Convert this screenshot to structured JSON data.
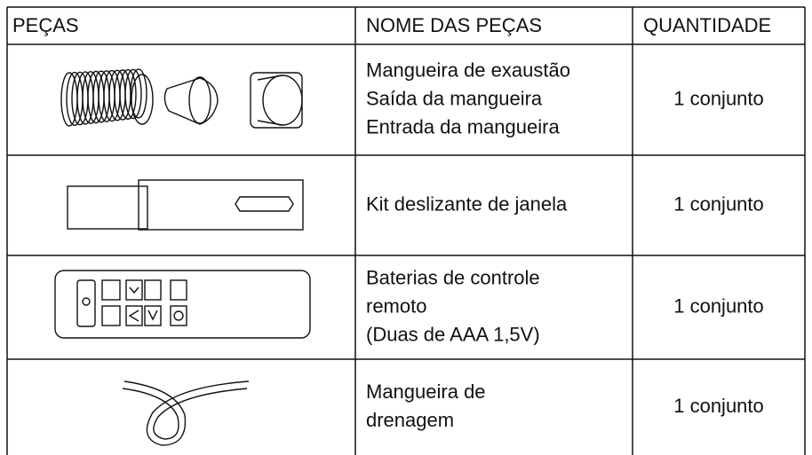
{
  "table": {
    "header": [
      "PEÇAS",
      "NOME DAS PEÇAS",
      "QUANTIDADE"
    ],
    "rows": [
      {
        "name_lines": [
          "Mangueira de exaustão",
          "Saída da mangueira",
          "Entrada da mangueira"
        ],
        "quantity": "1 conjunto"
      },
      {
        "name_lines": [
          "Kit deslizante de janela"
        ],
        "quantity": "1 conjunto"
      },
      {
        "name_lines": [
          "Baterias de controle",
          "remoto",
          "(Duas de AAA 1,5V)"
        ],
        "quantity": "1 conjunto"
      },
      {
        "name_lines": [
          "Mangueira de",
          "drenagem"
        ],
        "quantity": "1 conjunto"
      }
    ]
  }
}
